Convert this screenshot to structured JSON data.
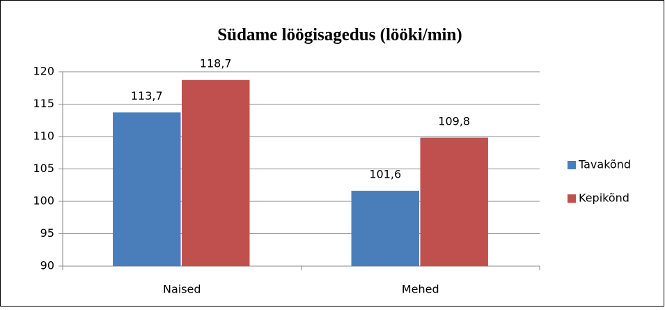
{
  "chart_data": {
    "type": "bar",
    "title": "Südame löögisagedus (lööki/min)",
    "categories": [
      "Naised",
      "Mehed"
    ],
    "series": [
      {
        "name": "Tavakõnd",
        "color": "#4a7ebb",
        "values": [
          113.7,
          101.6
        ],
        "value_labels": [
          "113,7",
          "101,6"
        ]
      },
      {
        "name": "Kepikõnd",
        "color": "#c0504d",
        "values": [
          118.7,
          109.8
        ],
        "value_labels": [
          "118,7",
          "109,8"
        ]
      }
    ],
    "ylim": [
      90,
      120
    ],
    "yticks": [
      90,
      95,
      100,
      105,
      110,
      115,
      120
    ],
    "grid": true,
    "legend": "right"
  }
}
